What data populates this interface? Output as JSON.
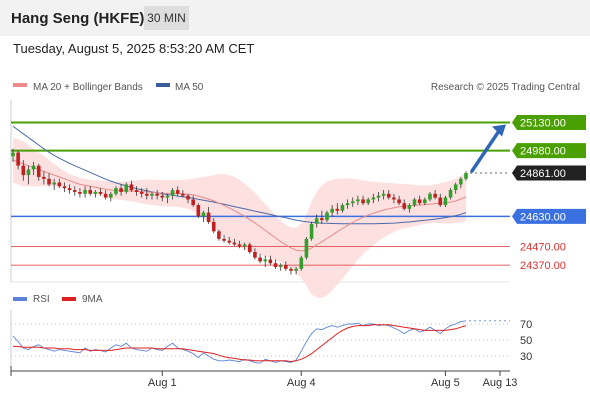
{
  "header": {
    "title": "Hang Seng (HKFE)",
    "timeframe": "30 MIN"
  },
  "date_line": "Tuesday, August 5, 2025 8:53:20 AM CET",
  "legend": {
    "items": [
      {
        "label": "MA 20 + Bollinger Bands",
        "color": "#f08a8a"
      },
      {
        "label": "MA 50",
        "color": "#3a5a9a"
      }
    ],
    "credit": "Research © 2025 Trading Central"
  },
  "rsi_legend": {
    "items": [
      {
        "label": "RSI",
        "color": "#5b84d6"
      },
      {
        "label": "9MA",
        "color": "#e02020"
      }
    ]
  },
  "colors": {
    "green": "#4aa000",
    "blue": "#3a70e0",
    "red": "#e03030",
    "bb_fill": "#fde0e0",
    "ma20": "#e88a8a",
    "ma50": "#4a6aa8",
    "candle_up": "#33a02c",
    "candle_down": "#c02020",
    "arrow": "#2f66b5",
    "current": "#222222"
  },
  "chart_data": {
    "type": "candlestick",
    "y_range": [
      24280,
      25250
    ],
    "levels": [
      {
        "value": 25130,
        "label": "25130.00",
        "kind": "resistance"
      },
      {
        "value": 24980,
        "label": "24980.00",
        "kind": "resistance"
      },
      {
        "value": 24861,
        "label": "24861.00",
        "kind": "current"
      },
      {
        "value": 24630,
        "label": "24630.00",
        "kind": "pivot"
      },
      {
        "value": 24470,
        "label": "24470.00",
        "kind": "support"
      },
      {
        "value": 24370,
        "label": "24370.00",
        "kind": "support"
      }
    ],
    "x_ticks": [
      "Aug 1",
      "Aug 4",
      "Aug 5",
      "Aug 13"
    ],
    "x_tick_bar_index": [
      29,
      56,
      84,
      98
    ],
    "candles": [
      [
        24950,
        24990,
        24920,
        24970
      ],
      [
        24970,
        24980,
        24880,
        24900
      ],
      [
        24900,
        24930,
        24820,
        24850
      ],
      [
        24850,
        24900,
        24800,
        24880
      ],
      [
        24880,
        24920,
        24850,
        24900
      ],
      [
        24900,
        24910,
        24820,
        24840
      ],
      [
        24840,
        24870,
        24800,
        24830
      ],
      [
        24830,
        24860,
        24790,
        24800
      ],
      [
        24800,
        24830,
        24770,
        24810
      ],
      [
        24810,
        24830,
        24780,
        24790
      ],
      [
        24790,
        24810,
        24760,
        24780
      ],
      [
        24780,
        24800,
        24750,
        24770
      ],
      [
        24770,
        24790,
        24740,
        24760
      ],
      [
        24760,
        24780,
        24730,
        24750
      ],
      [
        24750,
        24790,
        24730,
        24770
      ],
      [
        24770,
        24790,
        24740,
        24750
      ],
      [
        24750,
        24770,
        24730,
        24760
      ],
      [
        24760,
        24780,
        24740,
        24750
      ],
      [
        24750,
        24770,
        24720,
        24730
      ],
      [
        24730,
        24760,
        24710,
        24750
      ],
      [
        24750,
        24790,
        24740,
        24780
      ],
      [
        24780,
        24800,
        24740,
        24760
      ],
      [
        24760,
        24810,
        24750,
        24800
      ],
      [
        24800,
        24820,
        24760,
        24770
      ],
      [
        24770,
        24790,
        24740,
        24760
      ],
      [
        24760,
        24780,
        24730,
        24750
      ],
      [
        24750,
        24780,
        24720,
        24740
      ],
      [
        24740,
        24760,
        24720,
        24750
      ],
      [
        24750,
        24770,
        24720,
        24740
      ],
      [
        24740,
        24760,
        24710,
        24730
      ],
      [
        24730,
        24750,
        24700,
        24740
      ],
      [
        24740,
        24780,
        24720,
        24770
      ],
      [
        24770,
        24790,
        24740,
        24750
      ],
      [
        24750,
        24770,
        24730,
        24740
      ],
      [
        24740,
        24750,
        24700,
        24720
      ],
      [
        24720,
        24740,
        24680,
        24690
      ],
      [
        24690,
        24700,
        24620,
        24630
      ],
      [
        24630,
        24660,
        24600,
        24650
      ],
      [
        24650,
        24680,
        24590,
        24600
      ],
      [
        24600,
        24620,
        24540,
        24550
      ],
      [
        24550,
        24560,
        24500,
        24510
      ],
      [
        24510,
        24530,
        24490,
        24500
      ],
      [
        24500,
        24520,
        24480,
        24490
      ],
      [
        24490,
        24510,
        24470,
        24480
      ],
      [
        24480,
        24500,
        24460,
        24470
      ],
      [
        24470,
        24490,
        24450,
        24480
      ],
      [
        24480,
        24490,
        24430,
        24440
      ],
      [
        24440,
        24460,
        24400,
        24410
      ],
      [
        24410,
        24430,
        24380,
        24390
      ],
      [
        24390,
        24420,
        24360,
        24400
      ],
      [
        24400,
        24420,
        24370,
        24380
      ],
      [
        24380,
        24400,
        24350,
        24360
      ],
      [
        24360,
        24380,
        24340,
        24370
      ],
      [
        24370,
        24390,
        24340,
        24350
      ],
      [
        24350,
        24360,
        24320,
        24340
      ],
      [
        24340,
        24360,
        24320,
        24350
      ],
      [
        24350,
        24420,
        24340,
        24410
      ],
      [
        24410,
        24520,
        24400,
        24510
      ],
      [
        24510,
        24600,
        24500,
        24590
      ],
      [
        24590,
        24640,
        24570,
        24620
      ],
      [
        24620,
        24660,
        24590,
        24610
      ],
      [
        24610,
        24660,
        24600,
        24650
      ],
      [
        24650,
        24690,
        24630,
        24670
      ],
      [
        24670,
        24700,
        24640,
        24660
      ],
      [
        24660,
        24700,
        24650,
        24690
      ],
      [
        24690,
        24720,
        24670,
        24700
      ],
      [
        24700,
        24730,
        24680,
        24710
      ],
      [
        24710,
        24740,
        24690,
        24720
      ],
      [
        24720,
        24740,
        24690,
        24700
      ],
      [
        24700,
        24730,
        24690,
        24720
      ],
      [
        24720,
        24750,
        24700,
        24730
      ],
      [
        24730,
        24760,
        24710,
        24740
      ],
      [
        24740,
        24770,
        24720,
        24750
      ],
      [
        24750,
        24770,
        24720,
        24730
      ],
      [
        24730,
        24750,
        24700,
        24720
      ],
      [
        24720,
        24740,
        24690,
        24700
      ],
      [
        24700,
        24720,
        24660,
        24670
      ],
      [
        24670,
        24700,
        24650,
        24690
      ],
      [
        24690,
        24730,
        24680,
        24720
      ],
      [
        24720,
        24740,
        24690,
        24700
      ],
      [
        24700,
        24730,
        24690,
        24720
      ],
      [
        24720,
        24760,
        24710,
        24750
      ],
      [
        24750,
        24770,
        24720,
        24730
      ],
      [
        24730,
        24750,
        24680,
        24690
      ],
      [
        24690,
        24740,
        24680,
        24730
      ],
      [
        24730,
        24780,
        24720,
        24770
      ],
      [
        24770,
        24810,
        24750,
        24800
      ],
      [
        24800,
        24840,
        24780,
        24830
      ],
      [
        24830,
        24870,
        24820,
        24861
      ]
    ],
    "ma20": [
      24930,
      24920,
      24910,
      24900,
      24890,
      24880,
      24870,
      24860,
      24850,
      24840,
      24830,
      24820,
      24810,
      24800,
      24795,
      24790,
      24785,
      24780,
      24775,
      24770,
      24768,
      24766,
      24766,
      24765,
      24764,
      24762,
      24760,
      24758,
      24756,
      24754,
      24752,
      24752,
      24752,
      24750,
      24748,
      24744,
      24738,
      24730,
      24722,
      24712,
      24700,
      24688,
      24675,
      24660,
      24645,
      24630,
      24612,
      24595,
      24575,
      24555,
      24535,
      24515,
      24495,
      24478,
      24462,
      24450,
      24445,
      24450,
      24462,
      24478,
      24495,
      24512,
      24530,
      24548,
      24565,
      24582,
      24598,
      24612,
      24625,
      24636,
      24646,
      24655,
      24663,
      24670,
      24676,
      24681,
      24684,
      24686,
      24688,
      24690,
      24692,
      24695,
      24698,
      24700,
      24702,
      24706,
      24712,
      24722,
      24734
    ],
    "bb_upper": [
      25050,
      25040,
      25030,
      25010,
      24990,
      24970,
      24950,
      24930,
      24910,
      24890,
      24870,
      24855,
      24845,
      24835,
      24830,
      24825,
      24822,
      24820,
      24818,
      24815,
      24815,
      24815,
      24818,
      24820,
      24822,
      24824,
      24826,
      24826,
      24825,
      24824,
      24823,
      24823,
      24824,
      24824,
      24826,
      24830,
      24835,
      24840,
      24845,
      24850,
      24855,
      24856,
      24850,
      24840,
      24825,
      24805,
      24780,
      24755,
      24725,
      24695,
      24665,
      24635,
      24605,
      24585,
      24570,
      24570,
      24590,
      24640,
      24710,
      24760,
      24795,
      24815,
      24825,
      24830,
      24832,
      24832,
      24830,
      24826,
      24822,
      24818,
      24815,
      24812,
      24810,
      24808,
      24806,
      24804,
      24802,
      24800,
      24798,
      24796,
      24795,
      24796,
      24800,
      24806,
      24812,
      24820,
      24830,
      24845,
      24865
    ],
    "bb_lower": [
      24810,
      24800,
      24790,
      24790,
      24790,
      24790,
      24790,
      24790,
      24790,
      24790,
      24790,
      24785,
      24775,
      24765,
      24760,
      24755,
      24748,
      24740,
      24732,
      24725,
      24721,
      24717,
      24714,
      24710,
      24706,
      24700,
      24694,
      24690,
      24687,
      24684,
      24681,
      24681,
      24680,
      24676,
      24670,
      24658,
      24641,
      24620,
      24599,
      24574,
      24545,
      24520,
      24500,
      24480,
      24465,
      24455,
      24444,
      24435,
      24425,
      24415,
      24405,
      24395,
      24385,
      24371,
      24354,
      24330,
      24300,
      24260,
      24214,
      24196,
      24195,
      24209,
      24235,
      24266,
      24298,
      24332,
      24366,
      24398,
      24428,
      24454,
      24477,
      24498,
      24516,
      24532,
      24546,
      24558,
      24566,
      24572,
      24578,
      24584,
      24589,
      24594,
      24596,
      24594,
      24592,
      24592,
      24594,
      24599,
      24603
    ],
    "ma50": [
      25110,
      25090,
      25070,
      25050,
      25030,
      25010,
      24990,
      24972,
      24955,
      24940,
      24926,
      24912,
      24900,
      24888,
      24876,
      24864,
      24852,
      24840,
      24828,
      24818,
      24808,
      24800,
      24792,
      24784,
      24778,
      24772,
      24766,
      24760,
      24755,
      24750,
      24746,
      24742,
      24738,
      24734,
      24730,
      24726,
      24721,
      24716,
      24711,
      24706,
      24700,
      24694,
      24688,
      24682,
      24676,
      24670,
      24664,
      24658,
      24652,
      24646,
      24640,
      24634,
      24628,
      24622,
      24616,
      24610,
      24605,
      24601,
      24598,
      24596,
      24594,
      24593,
      24592,
      24591,
      24590,
      24590,
      24590,
      24590,
      24590,
      24590,
      24590,
      24591,
      24592,
      24593,
      24594,
      24596,
      24598,
      24600,
      24603,
      24606,
      24609,
      24612,
      24615,
      24619,
      24623,
      24628,
      24634,
      24641,
      24650
    ],
    "forecast_arrow": {
      "from": 24861,
      "to": 25130
    },
    "rsi": {
      "ticks": [
        70,
        50,
        30
      ],
      "y_range": [
        15,
        85
      ],
      "rsi": [
        55,
        48,
        40,
        38,
        42,
        44,
        40,
        38,
        36,
        38,
        37,
        36,
        35,
        34,
        40,
        36,
        38,
        37,
        35,
        40,
        44,
        42,
        46,
        40,
        38,
        37,
        36,
        40,
        38,
        37,
        42,
        46,
        40,
        38,
        36,
        33,
        28,
        34,
        30,
        26,
        24,
        24,
        25,
        24,
        23,
        26,
        24,
        22,
        21,
        26,
        24,
        22,
        24,
        23,
        22,
        25,
        36,
        48,
        58,
        64,
        63,
        66,
        68,
        66,
        68,
        70,
        70,
        71,
        68,
        70,
        70,
        68,
        69,
        68,
        65,
        62,
        58,
        62,
        64,
        60,
        62,
        66,
        62,
        58,
        64,
        68,
        70,
        73,
        74
      ],
      "ma9": [
        42,
        42,
        41,
        41,
        41,
        41,
        40,
        40,
        40,
        39,
        39,
        39,
        38,
        38,
        38,
        37,
        37,
        37,
        37,
        37,
        38,
        39,
        40,
        40,
        40,
        40,
        40,
        40,
        39,
        39,
        39,
        39,
        39,
        39,
        38,
        37,
        36,
        35,
        34,
        33,
        31,
        29,
        28,
        27,
        26,
        25,
        25,
        24,
        24,
        24,
        24,
        24,
        24,
        24,
        23,
        24,
        26,
        29,
        33,
        38,
        43,
        48,
        53,
        58,
        62,
        65,
        67,
        68,
        68,
        68,
        69,
        69,
        69,
        69,
        68,
        67,
        66,
        65,
        64,
        63,
        62,
        62,
        62,
        62,
        62,
        63,
        64,
        66,
        68
      ]
    }
  }
}
